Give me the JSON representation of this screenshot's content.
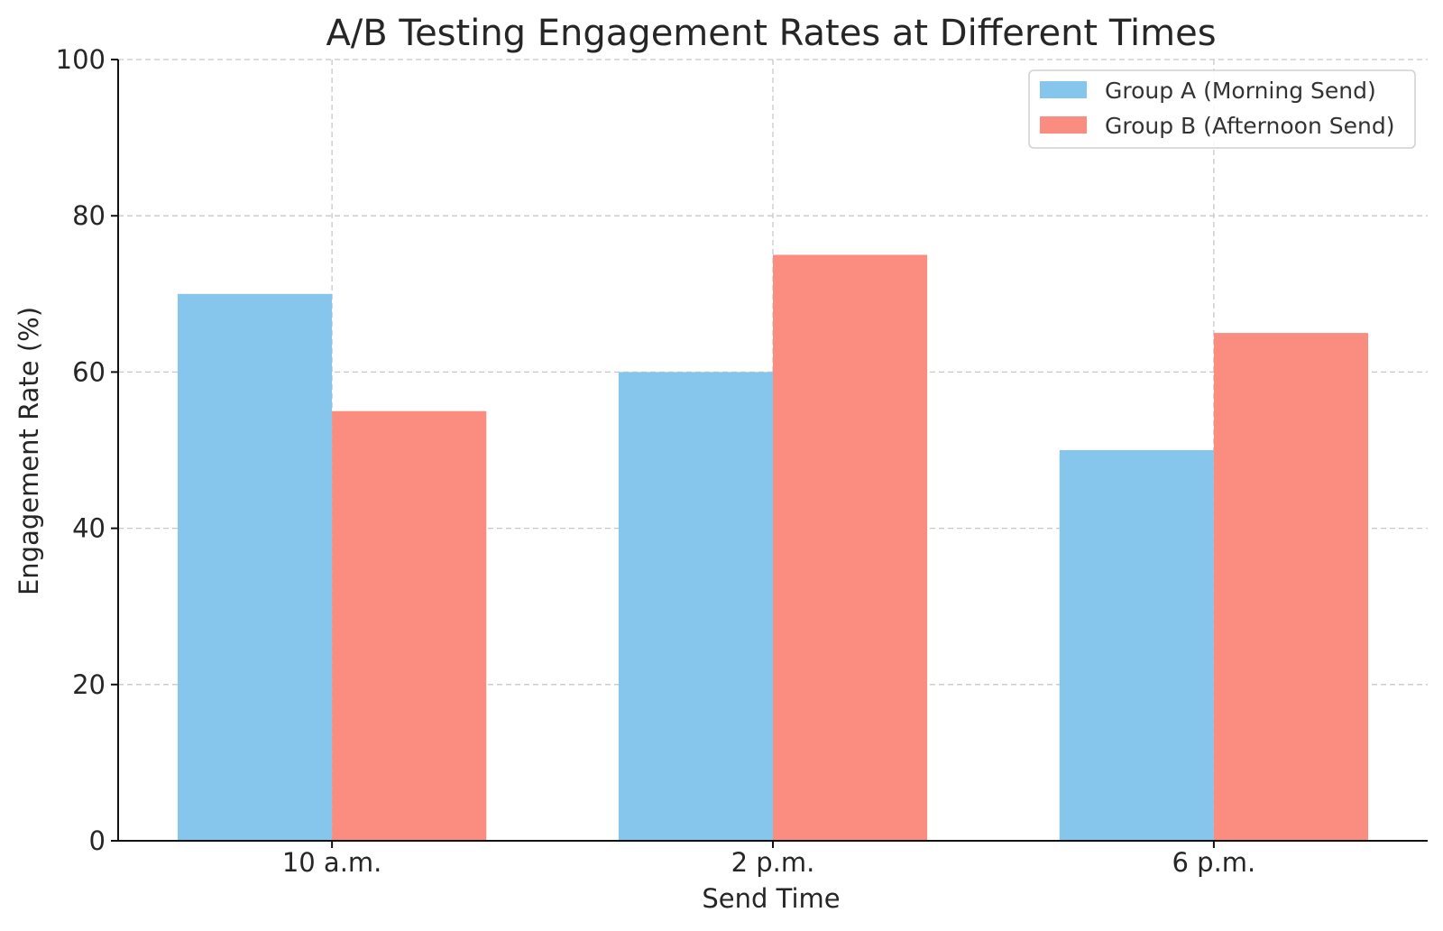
{
  "chart_data": {
    "type": "bar",
    "title": "A/B Testing Engagement Rates at Different Times",
    "xlabel": "Send Time",
    "ylabel": "Engagement Rate (%)",
    "categories": [
      "10 a.m.",
      "2 p.m.",
      "6 p.m."
    ],
    "series": [
      {
        "name": "Group A (Morning Send)",
        "color": "#87C6EC",
        "values": [
          70,
          60,
          50
        ]
      },
      {
        "name": "Group B (Afternoon Send)",
        "color": "#FA8C80",
        "values": [
          55,
          75,
          65
        ]
      }
    ],
    "ylim": [
      0,
      100
    ],
    "yticks": [
      0,
      20,
      40,
      60,
      80,
      100
    ],
    "grid": true,
    "legend_position": "top-right"
  }
}
